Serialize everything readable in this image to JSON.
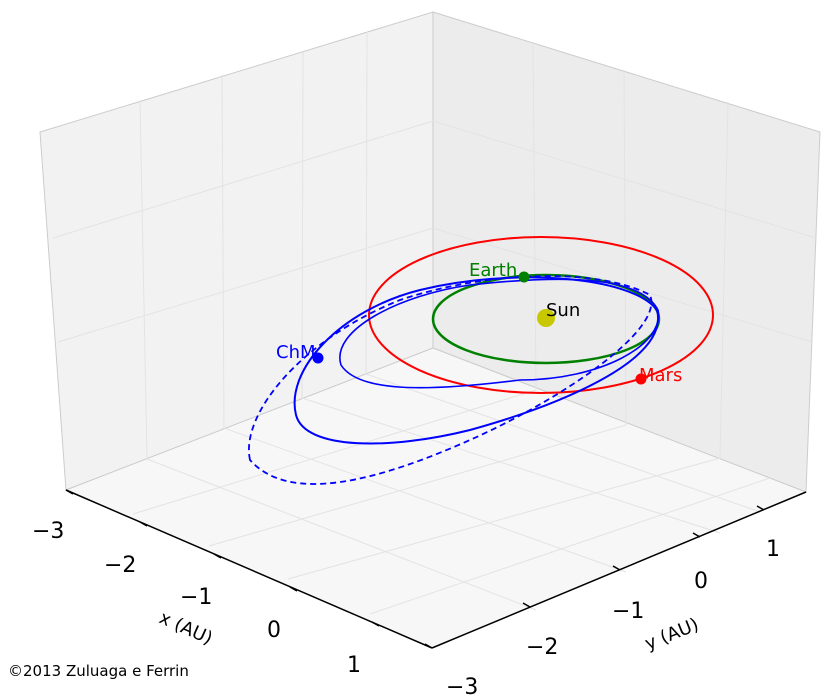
{
  "chart_data": {
    "type": "3d-orbit-plot",
    "title": "",
    "copyright": "©2013  Zuluaga e Ferrin",
    "xlabel": "x (AU)",
    "ylabel": "y (AU)",
    "x_ticks": [
      "−3",
      "−2",
      "−1",
      "0",
      "1"
    ],
    "y_ticks": [
      "−3",
      "−2",
      "−1",
      "0",
      "1"
    ],
    "xlim": [
      -3,
      1.5
    ],
    "ylim": [
      -3,
      1.5
    ],
    "grid": true,
    "bodies": [
      {
        "name": "Sun",
        "color": "#c8c800"
      },
      {
        "name": "Earth",
        "color": "#008000"
      },
      {
        "name": "Mars",
        "color": "#ff0000"
      },
      {
        "name": "ChM",
        "color": "#0000ff"
      }
    ],
    "orbits": [
      {
        "body": "Earth",
        "a_au": 1.0,
        "color": "#008000",
        "style": "solid"
      },
      {
        "body": "Mars",
        "a_au": 1.52,
        "color": "#ff0000",
        "style": "solid"
      },
      {
        "body": "ChM",
        "color": "#0000ff",
        "style": "solid"
      },
      {
        "body": "ChM",
        "color": "#0000ff",
        "style": "solid"
      },
      {
        "body": "ChM",
        "color": "#0000ff",
        "style": "dashed"
      }
    ]
  }
}
